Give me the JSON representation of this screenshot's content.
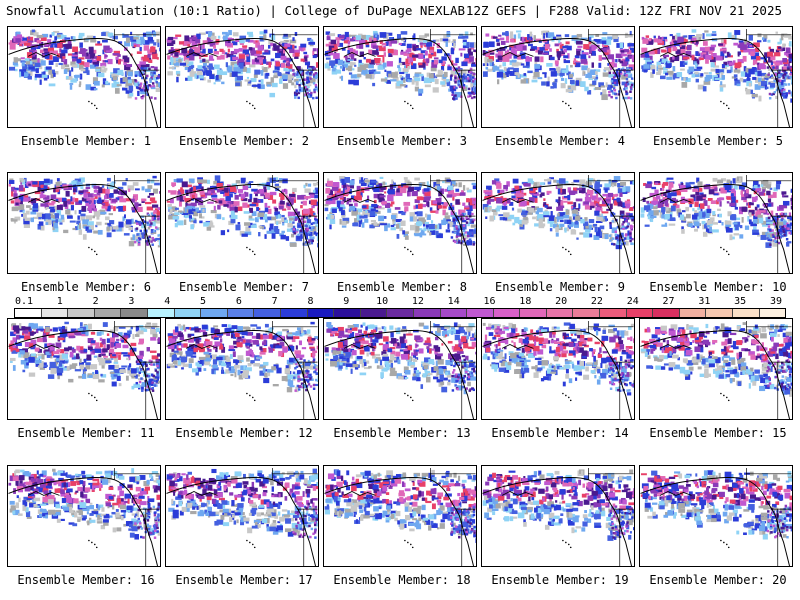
{
  "header": {
    "title_left": "Snowfall Accumulation (10:1 Ratio) | College of DuPage NEXLAB",
    "title_right": "12Z GEFS | F288 Valid: 12Z FRI NOV 21 2025"
  },
  "members": [
    {
      "label": "Ensemble Member: 1"
    },
    {
      "label": "Ensemble Member: 2"
    },
    {
      "label": "Ensemble Member: 3"
    },
    {
      "label": "Ensemble Member: 4"
    },
    {
      "label": "Ensemble Member: 5"
    },
    {
      "label": "Ensemble Member: 6"
    },
    {
      "label": "Ensemble Member: 7"
    },
    {
      "label": "Ensemble Member: 8"
    },
    {
      "label": "Ensemble Member: 9"
    },
    {
      "label": "Ensemble Member: 10"
    },
    {
      "label": "Ensemble Member: 11"
    },
    {
      "label": "Ensemble Member: 12"
    },
    {
      "label": "Ensemble Member: 13"
    },
    {
      "label": "Ensemble Member: 14"
    },
    {
      "label": "Ensemble Member: 15"
    },
    {
      "label": "Ensemble Member: 16"
    },
    {
      "label": "Ensemble Member: 17"
    },
    {
      "label": "Ensemble Member: 18"
    },
    {
      "label": "Ensemble Member: 19"
    },
    {
      "label": "Ensemble Member: 20"
    }
  ],
  "legend": {
    "labels": [
      "0.1",
      "1",
      "2",
      "3",
      "4",
      "5",
      "6",
      "7",
      "8",
      "9",
      "10",
      "12",
      "14",
      "16",
      "18",
      "20",
      "22",
      "24",
      "27",
      "31",
      "35",
      "39"
    ],
    "colors": [
      "#ffffff",
      "#e6e6e6",
      "#c8c8c8",
      "#a8a8a8",
      "#8a8a8a",
      "#b8f2ff",
      "#8fd3f5",
      "#6fa8f0",
      "#5a80e8",
      "#4460e0",
      "#2b3cd8",
      "#1a1ac0",
      "#2c0f9c",
      "#4a1a8f",
      "#6a2aa0",
      "#8a3ab8",
      "#a64ac8",
      "#c058d0",
      "#d860c8",
      "#e068b8",
      "#e874a8",
      "#ea7c98",
      "#ec5c7c",
      "#e84068",
      "#d83060",
      "#f2b0a0",
      "#f6c8b0",
      "#fae0c8",
      "#fdf0e0"
    ]
  }
}
